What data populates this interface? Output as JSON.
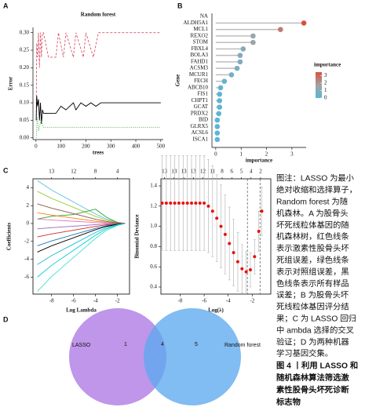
{
  "panel_labels": [
    "A",
    "B",
    "C",
    "D"
  ],
  "chart_data": [
    {
      "type": "line",
      "title": "Random forest",
      "xlabel": "trees",
      "ylabel": "Error",
      "xlim": [
        -12,
        510
      ],
      "xticks": [
        0,
        100,
        200,
        300,
        400,
        500
      ],
      "ylim": [
        -0.005,
        0.315
      ],
      "yticks": [
        {
          "value": 0,
          "label": "0.00"
        },
        0.05,
        {
          "value": 0.1,
          "label": "0.10"
        },
        0.15,
        {
          "value": 0.2,
          "label": "0.20"
        },
        0.25,
        {
          "value": 0.3,
          "label": "0.30"
        }
      ],
      "series": [
        {
          "color": "#d9546a",
          "style": "dashed",
          "x": [
            1,
            3,
            6,
            10,
            14,
            18,
            22,
            26,
            30,
            50,
            80,
            90,
            110,
            120,
            150,
            160,
            190,
            200,
            230,
            250,
            280,
            500
          ],
          "values": [
            0.05,
            0.27,
            0.23,
            0.3,
            0.2,
            0.3,
            0.23,
            0.3,
            0.3,
            0.23,
            0.23,
            0.3,
            0.23,
            0.3,
            0.23,
            0.3,
            0.23,
            0.3,
            0.23,
            0.3,
            0.3,
            0.3
          ]
        },
        {
          "color": "#000000",
          "style": "solid",
          "x": [
            1,
            3,
            6,
            10,
            14,
            18,
            22,
            26,
            30,
            50,
            80,
            100,
            120,
            150,
            160,
            180,
            200,
            220,
            240,
            260,
            280,
            300,
            500
          ],
          "values": [
            0.05,
            0.12,
            0.09,
            0.11,
            0.05,
            0.1,
            0.04,
            0.08,
            0.07,
            0.07,
            0.07,
            0.09,
            0.08,
            0.1,
            0.08,
            0.1,
            0.09,
            0.1,
            0.09,
            0.1,
            0.1,
            0.1,
            0.1
          ]
        },
        {
          "color": "#3aa83a",
          "style": "dotted",
          "x": [
            1,
            5,
            10,
            20,
            30,
            500
          ],
          "values": [
            0,
            0.06,
            0.02,
            0.05,
            0.03,
            0.03
          ]
        }
      ]
    },
    {
      "type": "lollipop",
      "xlabel": "importance",
      "ylabel": "Gene",
      "categories": [
        "NA",
        "ALDH5A1",
        "MCL1",
        "REXO2",
        "STOM",
        "FBXL4",
        "BOLA3",
        "FAHD1",
        "ACSM3",
        "MCUR1",
        "FECH",
        "ABCB10",
        "FIS1",
        "CHPT1",
        "GCAT",
        "PRDX2",
        "BID",
        "GLRX5",
        "ACSL6",
        "ISCA1"
      ],
      "values": [
        null,
        3.47,
        2.55,
        1.47,
        1.47,
        1.08,
        0.96,
        0.96,
        0.84,
        0.62,
        0.34,
        0.19,
        0.15,
        0.15,
        0.15,
        0.12,
        0.06,
        0.06,
        0.06,
        0.06
      ],
      "xlim": [
        -0.15,
        3.56
      ],
      "xticks": [
        0,
        1,
        2,
        3
      ],
      "colorbar": {
        "title": "importance",
        "colors": [
          "#58b6d8",
          "#a3a3a3",
          "#d9503c"
        ],
        "lim": [
          0,
          3.47
        ],
        "ticks": [
          3,
          2,
          1,
          0
        ]
      }
    },
    {
      "type": "line",
      "xlabel": "Log Lambda",
      "ylabel": "Coefficients",
      "frame": true,
      "xlim": [
        -9.7,
        -0.9
      ],
      "xticks": [
        -8,
        -6,
        -4,
        -2
      ],
      "ylim": [
        -7.9,
        5.0
      ],
      "yticks": [
        -6,
        -4,
        -2,
        0,
        2,
        4
      ],
      "top_ticks": [
        {
          "value": -8,
          "label": "13"
        },
        {
          "value": -6,
          "label": "12"
        },
        {
          "value": -4,
          "label": "8"
        },
        {
          "value": -2,
          "label": "4"
        }
      ],
      "x": [
        -9.3,
        -8,
        -6,
        -4,
        -3,
        -2,
        -1.3
      ],
      "series": [
        {
          "color": "#5bc0de",
          "style": "solid",
          "values": [
            4.8,
            3.74,
            2.4,
            1.06,
            0.48,
            0.14,
            0
          ]
        },
        {
          "color": "#9acd32",
          "style": "solid",
          "values": [
            3.6,
            2.81,
            1.8,
            0.79,
            0.36,
            0.11,
            0
          ]
        },
        {
          "color": "#2ca02c",
          "style": "solid",
          "values": [
            0.5,
            0.8,
            1.0,
            1.6,
            0.7,
            0.1,
            0
          ]
        },
        {
          "color": "#ff7f0e",
          "style": "solid",
          "values": [
            1.2,
            0.94,
            0.6,
            0.26,
            0.12,
            0.04,
            0
          ]
        },
        {
          "color": "#e377c2",
          "style": "solid",
          "values": [
            0.5,
            0.39,
            0.25,
            0.11,
            0.05,
            0.02,
            0
          ]
        },
        {
          "color": "#9467bd",
          "style": "solid",
          "values": [
            -0.6,
            -0.47,
            -0.3,
            -0.13,
            -0.06,
            -0.02,
            0
          ]
        },
        {
          "color": "#d62728",
          "style": "solid",
          "values": [
            -1.5,
            -1.17,
            -0.75,
            -0.33,
            -0.15,
            -0.05,
            0
          ]
        },
        {
          "color": "#1f77b4",
          "style": "solid",
          "values": [
            -2.5,
            -1.95,
            -1.25,
            -0.55,
            -0.25,
            -0.08,
            0
          ]
        },
        {
          "color": "#000000",
          "style": "solid",
          "values": [
            -3.2,
            -2.5,
            -1.6,
            -0.7,
            -0.32,
            -0.1,
            0
          ]
        },
        {
          "color": "#17becf",
          "style": "solid",
          "values": [
            -4.6,
            -3.59,
            -2.3,
            -1.01,
            -0.46,
            -0.14,
            0
          ]
        },
        {
          "color": "#00ced1",
          "style": "solid",
          "values": [
            -6.0,
            -4.68,
            -3.0,
            -1.32,
            -0.6,
            -0.18,
            0
          ]
        },
        {
          "color": "#40e0d0",
          "style": "solid",
          "values": [
            -7.6,
            -5.93,
            -3.8,
            -1.67,
            -0.76,
            -0.23,
            0
          ]
        },
        {
          "color": "#8c564b",
          "style": "solid",
          "values": [
            2.2,
            1.72,
            1.1,
            0.48,
            0.22,
            0.07,
            0
          ]
        }
      ]
    },
    {
      "type": "errorbar",
      "xlabel": "Log(λ)",
      "ylabel": "Binomial Deviance",
      "frame": true,
      "color": "#e8120c",
      "error_color": "#b8b8b8",
      "xlim": [
        -9.6,
        -0.45
      ],
      "xticks": [
        -8,
        -6,
        -4,
        -2
      ],
      "ylim": [
        0.33,
        1.47
      ],
      "yticks": [
        0.4,
        0.6,
        0.8,
        {
          "value": 1,
          "label": "1.0"
        },
        1.2,
        1.4
      ],
      "top_ticks": [
        {
          "value": -9.3,
          "label": "13"
        },
        {
          "value": -8.5,
          "label": "13"
        },
        {
          "value": -7.7,
          "label": "13"
        },
        {
          "value": -6.9,
          "label": "13"
        },
        {
          "value": -6.1,
          "label": "12"
        },
        {
          "value": -5.3,
          "label": "11"
        },
        {
          "value": -4.5,
          "label": "8"
        },
        {
          "value": -3.7,
          "label": "6"
        },
        {
          "value": -2.9,
          "label": "5"
        },
        {
          "value": -2.1,
          "label": "4"
        },
        {
          "value": -1.3,
          "label": "2"
        }
      ],
      "vlines": [
        -2.4,
        -1.35
      ],
      "x": [
        -9.5,
        -9.15,
        -8.8,
        -8.45,
        -8.1,
        -7.75,
        -7.4,
        -7.05,
        -6.7,
        -6.35,
        -6.0,
        -5.65,
        -5.3,
        -4.95,
        -4.6,
        -4.25,
        -3.9,
        -3.55,
        -3.2,
        -2.85,
        -2.5,
        -2.15,
        -1.8,
        -1.45,
        -1.2
      ],
      "values": [
        1.23,
        1.23,
        1.23,
        1.23,
        1.23,
        1.23,
        1.23,
        1.23,
        1.23,
        1.23,
        1.23,
        1.2,
        1.15,
        1.08,
        1.0,
        0.92,
        0.83,
        0.74,
        0.65,
        0.58,
        0.55,
        0.57,
        0.7,
        0.95,
        1.15
      ],
      "errors": [
        0.47,
        0.47,
        0.47,
        0.47,
        0.47,
        0.47,
        0.47,
        0.47,
        0.47,
        0.47,
        0.47,
        0.46,
        0.45,
        0.43,
        0.41,
        0.39,
        0.36,
        0.33,
        0.29,
        0.24,
        0.2,
        0.17,
        0.17,
        0.2,
        0.24
      ]
    },
    {
      "type": "venn",
      "sets": [
        "LASSO",
        "Random forest"
      ],
      "colors": [
        "#b88be8",
        "#5ea9ee"
      ],
      "values": [
        1,
        4,
        5
      ]
    }
  ],
  "caption": {
    "lines": [
      "图注：LASSO 为最小",
      "绝对收缩和选择算子，",
      "Random forest 为随",
      "机森林。A 为股骨头",
      "坏死线粒体基因的随",
      "机森林树，红色线条",
      "表示激素性股骨头坏",
      "死组误差，绿色线条",
      "表示对照组误差，黑",
      "色线条表示所有样品",
      "误差；B 为股骨头坏",
      "死线粒体基因评分结",
      "果；C 为 LASSO 回归",
      "中 ambda 选择的交叉",
      "验证；D 为两种机器",
      "学习基因交集。"
    ],
    "figure_title": [
      "图 4 丨利用 LASSO 和",
      "随机森林算法筛选激",
      "素性股骨头坏死诊断",
      "标志物"
    ]
  }
}
